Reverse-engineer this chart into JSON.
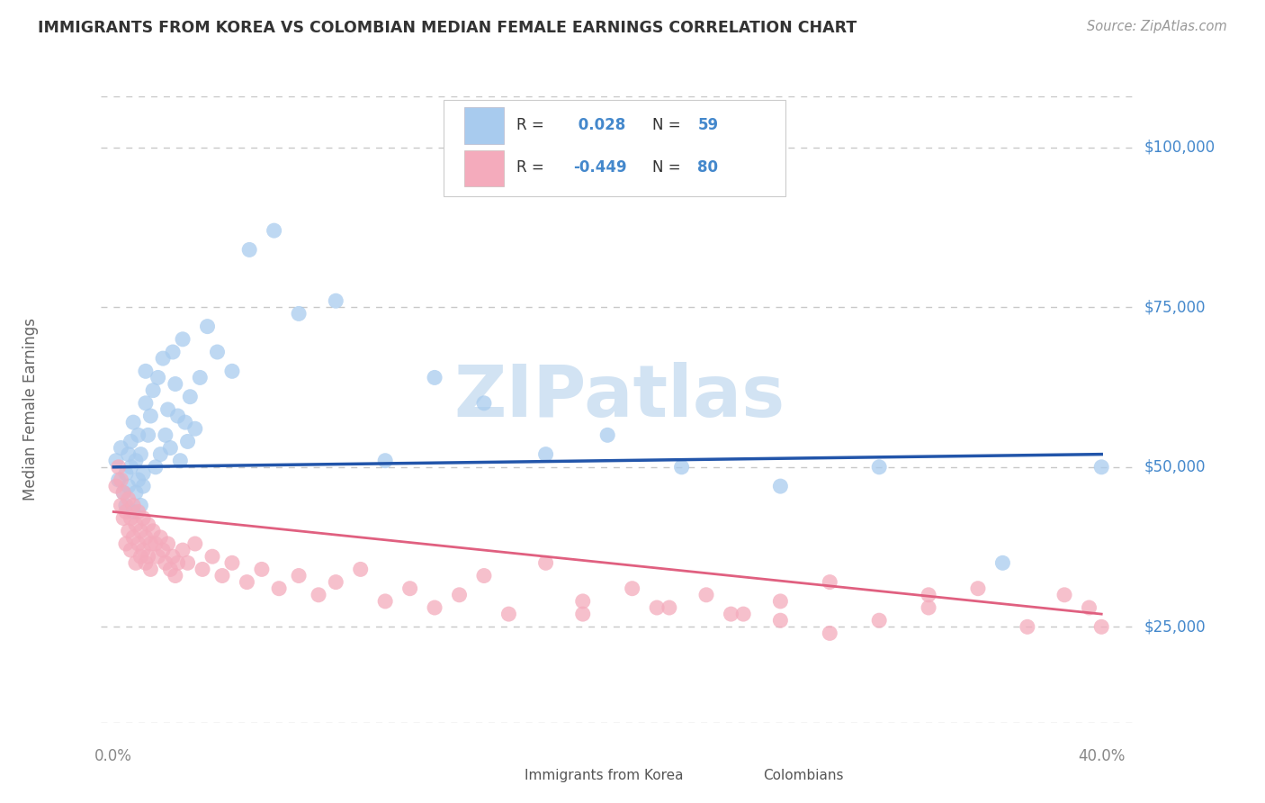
{
  "title": "IMMIGRANTS FROM KOREA VS COLOMBIAN MEDIAN FEMALE EARNINGS CORRELATION CHART",
  "source": "Source: ZipAtlas.com",
  "ylabel": "Median Female Earnings",
  "xlim": [
    -0.005,
    0.415
  ],
  "ylim": [
    10000,
    108000
  ],
  "yticks": [
    25000,
    50000,
    75000,
    100000
  ],
  "ytick_labels": [
    "$25,000",
    "$50,000",
    "$75,000",
    "$100,000"
  ],
  "korea_R": 0.028,
  "korea_N": 59,
  "colombia_R": -0.449,
  "colombia_N": 80,
  "korea_color": "#A8CBEE",
  "colombia_color": "#F4ABBC",
  "korea_line_color": "#2255AA",
  "colombia_line_color": "#E06080",
  "background_color": "#FFFFFF",
  "grid_color": "#C8C8C8",
  "title_color": "#333333",
  "axis_label_color": "#666666",
  "tick_color": "#888888",
  "label_blue_color": "#4488CC",
  "watermark_color": "#C0D8EE",
  "korea_x": [
    0.001,
    0.002,
    0.003,
    0.004,
    0.005,
    0.005,
    0.006,
    0.006,
    0.007,
    0.007,
    0.008,
    0.008,
    0.009,
    0.009,
    0.01,
    0.01,
    0.011,
    0.011,
    0.012,
    0.012,
    0.013,
    0.013,
    0.014,
    0.015,
    0.016,
    0.017,
    0.018,
    0.019,
    0.02,
    0.021,
    0.022,
    0.023,
    0.024,
    0.025,
    0.026,
    0.027,
    0.028,
    0.029,
    0.03,
    0.031,
    0.033,
    0.035,
    0.038,
    0.042,
    0.048,
    0.055,
    0.065,
    0.075,
    0.09,
    0.11,
    0.13,
    0.15,
    0.175,
    0.2,
    0.23,
    0.27,
    0.31,
    0.36,
    0.4
  ],
  "korea_y": [
    51000,
    48000,
    53000,
    46000,
    49000,
    44000,
    52000,
    47000,
    50000,
    54000,
    43000,
    57000,
    46000,
    51000,
    48000,
    55000,
    44000,
    52000,
    49000,
    47000,
    60000,
    65000,
    55000,
    58000,
    62000,
    50000,
    64000,
    52000,
    67000,
    55000,
    59000,
    53000,
    68000,
    63000,
    58000,
    51000,
    70000,
    57000,
    54000,
    61000,
    56000,
    64000,
    72000,
    68000,
    65000,
    84000,
    87000,
    74000,
    76000,
    51000,
    64000,
    60000,
    52000,
    55000,
    50000,
    47000,
    50000,
    35000,
    50000
  ],
  "colombia_x": [
    0.001,
    0.002,
    0.003,
    0.003,
    0.004,
    0.004,
    0.005,
    0.005,
    0.006,
    0.006,
    0.007,
    0.007,
    0.008,
    0.008,
    0.009,
    0.009,
    0.01,
    0.01,
    0.011,
    0.011,
    0.012,
    0.012,
    0.013,
    0.013,
    0.014,
    0.014,
    0.015,
    0.015,
    0.016,
    0.017,
    0.018,
    0.019,
    0.02,
    0.021,
    0.022,
    0.023,
    0.024,
    0.025,
    0.026,
    0.028,
    0.03,
    0.033,
    0.036,
    0.04,
    0.044,
    0.048,
    0.054,
    0.06,
    0.067,
    0.075,
    0.083,
    0.09,
    0.1,
    0.11,
    0.12,
    0.13,
    0.14,
    0.15,
    0.16,
    0.175,
    0.19,
    0.21,
    0.225,
    0.24,
    0.255,
    0.27,
    0.29,
    0.31,
    0.33,
    0.35,
    0.37,
    0.385,
    0.395,
    0.4,
    0.29,
    0.33,
    0.25,
    0.27,
    0.22,
    0.19
  ],
  "colombia_y": [
    47000,
    50000,
    44000,
    48000,
    42000,
    46000,
    43000,
    38000,
    45000,
    40000,
    42000,
    37000,
    44000,
    39000,
    41000,
    35000,
    43000,
    38000,
    40000,
    36000,
    42000,
    37000,
    39000,
    35000,
    41000,
    36000,
    38000,
    34000,
    40000,
    38000,
    36000,
    39000,
    37000,
    35000,
    38000,
    34000,
    36000,
    33000,
    35000,
    37000,
    35000,
    38000,
    34000,
    36000,
    33000,
    35000,
    32000,
    34000,
    31000,
    33000,
    30000,
    32000,
    34000,
    29000,
    31000,
    28000,
    30000,
    33000,
    27000,
    35000,
    29000,
    31000,
    28000,
    30000,
    27000,
    29000,
    32000,
    26000,
    28000,
    31000,
    25000,
    30000,
    28000,
    25000,
    24000,
    30000,
    27000,
    26000,
    28000,
    27000
  ]
}
